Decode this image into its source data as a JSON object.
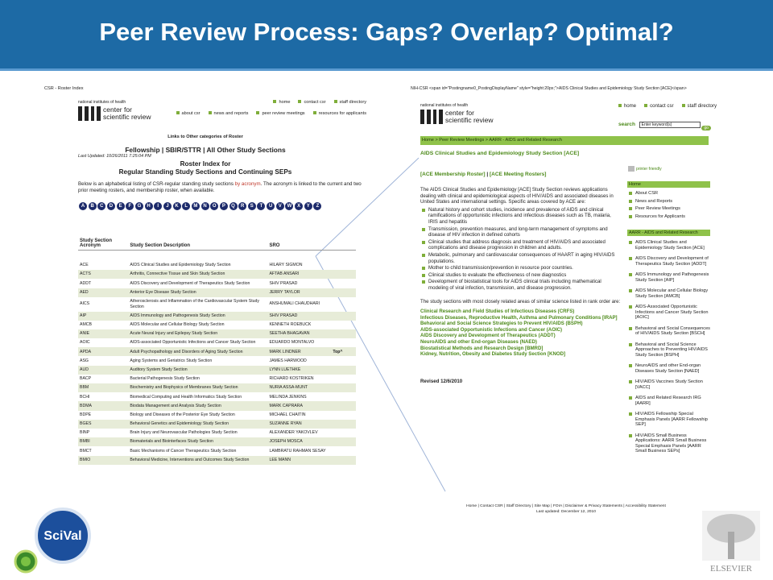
{
  "title": "Peer Review Process: Gaps? Overlap? Optimal?",
  "left": {
    "window_title": "CSR - Roster Index",
    "nih": "national institutes of health",
    "logo_text": [
      "center for",
      "scientific review"
    ],
    "nav_top": [
      "home",
      "contact csr",
      "staff directory"
    ],
    "nav_bottom": [
      "about csr",
      "news and reports",
      "peer review meetings",
      "resources for applicants"
    ],
    "links_heading": "Links to Other categories of Roster",
    "categories_line": "Fellowship | SBIR/STTR | All Other Study Sections",
    "last_updated": "Last Updated: 10/26/2011 7:25:04 PM",
    "heading": [
      "Roster Index for",
      "Regular Standing Study Sections and Continuing SEPs"
    ],
    "intro": [
      "Below is an alphabetical listing of CSR-regular standing study sections ",
      "by acronym",
      ". The acronym is linked to the current and two prior meeting rosters, and membership roster, when available."
    ],
    "letters": [
      "A",
      "B",
      "C",
      "D",
      "E",
      "F",
      "G",
      "H",
      "I",
      "J",
      "K",
      "L",
      "M",
      "N",
      "O",
      "P",
      "Q",
      "R",
      "S",
      "T",
      "U",
      "V",
      "W",
      "X",
      "Y",
      "Z"
    ],
    "table": {
      "headers": [
        "Study Section Acronym",
        "Study Section Description",
        "SRO"
      ],
      "top_link": "Top^",
      "rows": [
        [
          "ACE",
          "AIDS Clinical Studies and Epidemiology Study Section",
          "HILARY SIGMON"
        ],
        [
          "ACTS",
          "Arthritis, Connective Tissue and Skin Study Section",
          "AFTAB ANSARI"
        ],
        [
          "ADDT",
          "AIDS Discovery and Development of Therapeutics Study Section",
          "SHIV PRASAD"
        ],
        [
          "AED",
          "Anterior Eye Disease Study Section",
          "JERRY TAYLOR"
        ],
        [
          "AICS",
          "Atherosclerosis and Inflammation of the Cardiovascular System Study Section",
          "ANSHUMALI CHAUDHARI"
        ],
        [
          "AIP",
          "AIDS Immunology and Pathogenesis Study Section",
          "SHIV PRASAD"
        ],
        [
          "AMCB",
          "AIDS Molecular and Cellular Biology Study Section",
          "KENNETH ROEBUCK"
        ],
        [
          "ANIE",
          "Acute Neural Injury and Epilepsy Study Section",
          "SEETHA BHAGAVAN"
        ],
        [
          "AOIC",
          "AIDS-associated Opportunistic Infections and Cancer Study Section",
          "EDUARDO MONTALVO"
        ],
        [
          "APDA",
          "Adult Psychopathology and Disorders of Aging Study Section",
          "MARK LINDNER"
        ],
        [
          "ASG",
          "Aging Systems and Geriatrics Study Section",
          "JAMES HARWOOD"
        ],
        [
          "AUD",
          "Auditory System Study Section",
          "LYNN LUETHKE"
        ],
        [
          "BACP",
          "Bacterial Pathogenesis Study Section",
          "RICHARD KOSTRIKEN"
        ],
        [
          "BBM",
          "Biochemistry and Biophysics of Membranes Study Section",
          "NURIA ASSA-MUNT"
        ],
        [
          "BCHI",
          "Biomedical Computing and Health Informatics Study Section",
          "MELINDA JENKINS"
        ],
        [
          "BDMA",
          "Biodata Management and Analysis Study Section",
          "MARK CAPRARA"
        ],
        [
          "BDPE",
          "Biology and Diseases of the Posterior Eye Study Section",
          "MICHAEL CHAITIN"
        ],
        [
          "BGES",
          "Behavioral Genetics and Epidemiology Study Section",
          "SUZANNE RYAN"
        ],
        [
          "BINP",
          "Brain Injury and Neurovascular Pathologies Study Section",
          "ALEXANDER YAKOVLEV"
        ],
        [
          "BMBI",
          "Biomaterials and Biointerfaces Study Section",
          "JOSEPH MOSCA"
        ],
        [
          "BMCT",
          "Basic Mechanisms of Cancer Therapeutics Study Section",
          "LAMBRATU RAHMAN SESAY"
        ],
        [
          "BMIO",
          "Behavioral Medicine, Interventions and Outcomes Study Section",
          "LEE MANN"
        ]
      ]
    }
  },
  "right": {
    "url_line": "NIH-CSR <span id=\"Postingname0_PostingDisplayName\" style=\"height:20px;\">AIDS Clinical Studies and Epidemiology Study Section [ACE]</span>",
    "nih": "national institutes of health",
    "logo_text": [
      "center for",
      "scientific review"
    ],
    "nav_top": [
      "home",
      "contact csr",
      "staff directory"
    ],
    "search_label": "search",
    "search_placeholder": "Enter keyword(s)",
    "search_button": "go",
    "breadcrumb": "Home > Peer Review Meetings > AARR - AIDS and Related Research",
    "heading": "AIDS Clinical Studies and Epidemiology Study Section [ACE]",
    "links": [
      "[ACE Membership Roster]",
      "[ACE Meeting Rosters]"
    ],
    "link_separator": "|",
    "printer": "printer friendly",
    "intro": "The AIDS Clinical Studies and Epidemiology [ACE] Study Section reviews applications dealing with clinical and epidemiological aspects of HIV/AIDS and associated diseases in United States and international settings. Specific areas covered by ACE are:",
    "bullets": [
      "Natural history and cohort studies, incidence and prevalence of AIDS and clinical ramifications of opportunistic infections and infectious diseases such as TB, malaria, IRIS and hepatitis",
      "Transmission, prevention measures, and long-term management of symptoms and disease of HIV infection in defined cohorts",
      "Clinical studies that address diagnosis and treatment of HIV/AIDS and associated complications and disease progression in children and adults.",
      "Metabolic, pulmonary and cardiovascular consequences of HAART in aging HIV/AIDS populations.",
      "Mother to child transmission/prevention in resource poor countries.",
      "Clinical studies to evaluate the effectiveness of new diagnostics",
      "Development of biostatistical tools for AIDS clinical trials including mathematical modeling of viral infection, transmission, and disease progression."
    ],
    "similar_intro": "The study sections with most closely related areas of similar science listed in rank order are:",
    "related": [
      "Clinical Research and Field Studies of Infectious Diseases (CRFS)",
      "Infectious Diseases, Reproductive Health, Asthma and Pulmonary Conditions [IRAP]",
      "Behavioral and Social Science Strategies to Prevent HIV/AIDS (BSPH)",
      "AIDS-associated Opportunistic Infections and Cancer (AOIC)",
      "AIDS Discovery and Development of Therapeutics (ADDT)",
      "NeuroAIDS and other End-organ Diseases (NAED)",
      "Biostatistical Methods and Research Design [BMRD]",
      "Kidney, Nutrition, Obesity and Diabetes Study Section [KNOD]"
    ],
    "revised": "Revised 12/6/2010",
    "sidebar": {
      "home": "Home",
      "items": [
        "About CSR",
        "News and Reports",
        "Peer Review Meetings",
        "Resources for Applicants"
      ],
      "group": "AARR - AIDS and Related Research",
      "group_items": [
        "AIDS Clinical Studies and Epidemiology Study Section [ACE]",
        "AIDS Discovery and Development of Therapeutics Study Section [ADDT]",
        "AIDS Immunology and Pathogenesis Study Section [AIP]",
        "AIDS Molecular and Cellular Biology Study Section [AMCB]",
        "AIDS-Associated Opportunistic Infections and Cancer Study Section [AOIC]",
        "Behavioral and Social Consequences of HIV/AIDS Study Section [BSCH]",
        "Behavioral and Social Science Approaches to Preventing HIV/AIDS Study Section [BSPH]",
        "NeuroAIDS and other End-organ Diseases Study Section [NAED]",
        "HIV/AIDS Vaccines Study Section [VACC]",
        "AIDS and Related Research IRG [AARR]",
        "HIV/AIDS Fellowship Special Emphasis Panels [AARR Fellowship SEP]",
        "HIV/AIDS Small Business Applications: AARR Small Business Special Emphasis Panels [AARR Small Business SEPs]"
      ]
    },
    "footer": [
      "Home | Contact CSR | Staff Directory | Site Map | FOIA | Disclaimer & Privacy Statements | Accessibility Statement",
      "Last updated: December 12, 2010"
    ]
  },
  "logos": {
    "scival": "SciVal",
    "elsevier": "ELSEVIER"
  }
}
